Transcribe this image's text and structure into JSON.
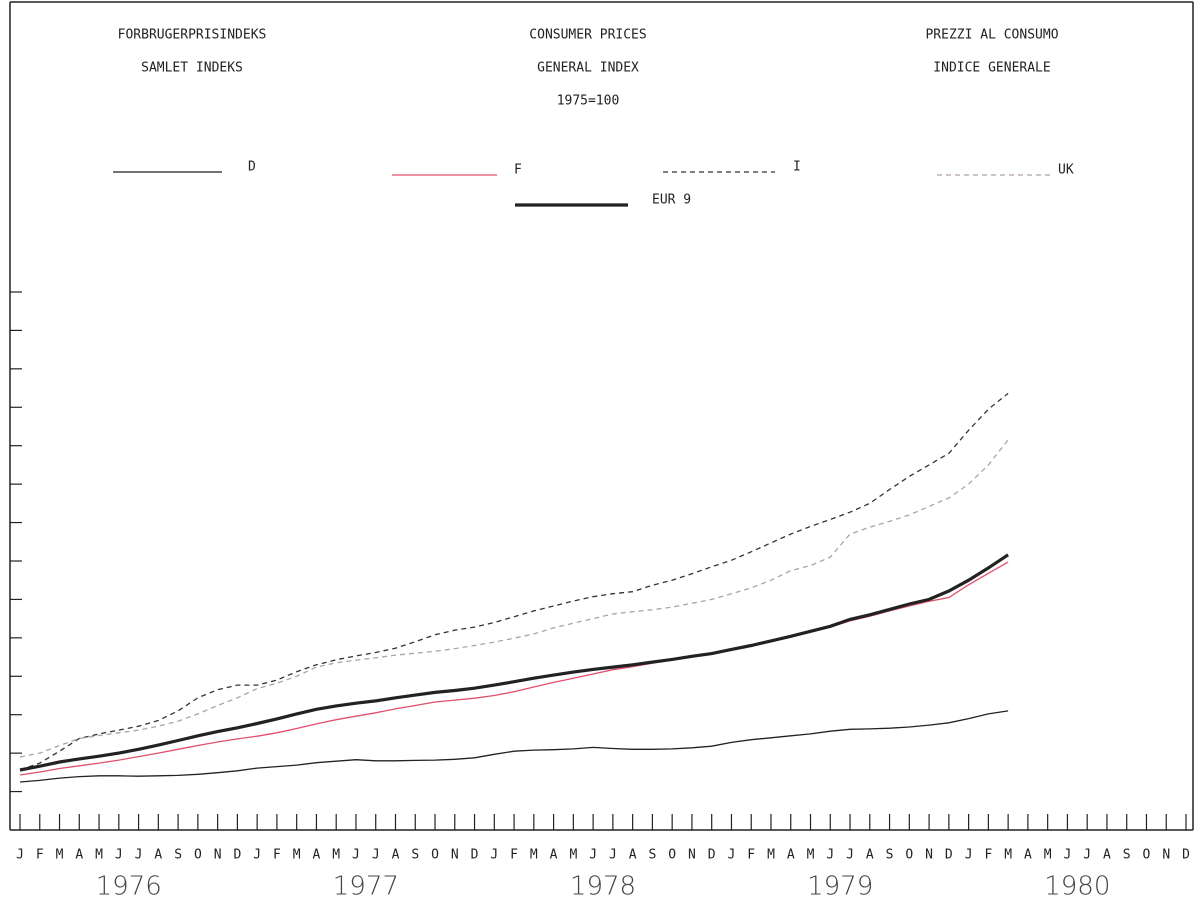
{
  "chart_data": {
    "type": "line",
    "titles": [
      [
        "FORBRUGERPRISINDEKS",
        "SAMLET INDEKS"
      ],
      [
        "CONSUMER PRICES",
        "GENERAL INDEX",
        "1975=100"
      ],
      [
        "PREZZI AL CONSUMO",
        "INDICE GENERALE"
      ]
    ],
    "categories": [
      "J",
      "F",
      "M",
      "A",
      "M",
      "J",
      "J",
      "A",
      "S",
      "O",
      "N",
      "D",
      "J",
      "F",
      "M",
      "A",
      "M",
      "J",
      "J",
      "A",
      "S",
      "O",
      "N",
      "D",
      "J",
      "F",
      "M",
      "A",
      "M",
      "J",
      "J",
      "A",
      "S",
      "O",
      "N",
      "D",
      "J",
      "F",
      "M",
      "A",
      "M",
      "J",
      "J",
      "A",
      "S",
      "O",
      "N",
      "D",
      "J",
      "F",
      "M",
      "A",
      "M",
      "J",
      "J",
      "A",
      "S",
      "O",
      "N",
      "D"
    ],
    "years": [
      "1976",
      "1977",
      "1978",
      "1979",
      "1980"
    ],
    "ylim": [
      90,
      240
    ],
    "yticks": [
      100,
      110,
      120,
      130,
      140,
      150,
      160,
      170,
      180,
      190,
      200,
      210,
      220,
      230
    ],
    "series": [
      {
        "name": "D",
        "color": "#222222",
        "dashed": false,
        "thick": false,
        "values": [
          102.5,
          102.9,
          103.5,
          103.9,
          104.1,
          104.1,
          104.0,
          104.1,
          104.2,
          104.5,
          104.9,
          105.4,
          106.1,
          106.5,
          106.9,
          107.5,
          107.9,
          108.3,
          108.0,
          108.0,
          108.1,
          108.2,
          108.4,
          108.8,
          109.7,
          110.5,
          110.8,
          110.9,
          111.1,
          111.5,
          111.2,
          111.0,
          111.0,
          111.1,
          111.4,
          111.8,
          112.8,
          113.5,
          114.0,
          114.5,
          115.0,
          115.7,
          116.2,
          116.3,
          116.5,
          116.8,
          117.3,
          117.9,
          119.0,
          120.2,
          121.0,
          null,
          null,
          null,
          null,
          null,
          null,
          null,
          null,
          null
        ]
      },
      {
        "name": "F",
        "color": "#e0506a",
        "dashed": false,
        "thick": false,
        "values": [
          104.3,
          105.1,
          106.0,
          106.7,
          107.4,
          108.2,
          109.1,
          110.0,
          111.0,
          112.0,
          112.9,
          113.7,
          114.4,
          115.3,
          116.4,
          117.6,
          118.7,
          119.6,
          120.5,
          121.5,
          122.4,
          123.3,
          123.8,
          124.3,
          125.0,
          126.0,
          127.2,
          128.4,
          129.5,
          130.6,
          131.7,
          132.5,
          133.4,
          134.2,
          135.0,
          135.8,
          136.8,
          137.8,
          139.0,
          140.2,
          141.5,
          142.8,
          144.4,
          145.6,
          147.0,
          148.3,
          149.5,
          150.5,
          153.8,
          156.8,
          159.7,
          null,
          null,
          null,
          null,
          null,
          null,
          null,
          null,
          null
        ]
      },
      {
        "name": "I",
        "color": "#333333",
        "dashed": true,
        "thick": false,
        "values": [
          105.6,
          107.4,
          110.5,
          113.8,
          115.0,
          116.0,
          117.0,
          118.5,
          121.0,
          124.4,
          126.5,
          127.7,
          127.7,
          129.0,
          131.2,
          133.0,
          134.3,
          135.3,
          136.2,
          137.3,
          139.0,
          140.8,
          142.0,
          142.8,
          144.0,
          145.5,
          147.0,
          148.3,
          149.6,
          150.7,
          151.5,
          152.0,
          153.7,
          155.0,
          156.7,
          158.5,
          160.2,
          162.4,
          164.7,
          167.0,
          169.0,
          170.8,
          172.7,
          175.0,
          178.6,
          182.0,
          185.0,
          188.0,
          194.0,
          199.5,
          203.6,
          null,
          null,
          null,
          null,
          null,
          null,
          null,
          null,
          null
        ]
      },
      {
        "name": "UK",
        "color": "#b0a0a8",
        "dashed": true,
        "thick": false,
        "values": [
          109.0,
          110.0,
          112.0,
          113.8,
          114.6,
          115.3,
          116.0,
          117.0,
          118.3,
          120.2,
          122.4,
          124.4,
          126.8,
          128.2,
          130.0,
          132.4,
          133.5,
          134.2,
          134.8,
          135.5,
          136.0,
          136.5,
          137.2,
          138.0,
          138.9,
          139.9,
          141.0,
          142.6,
          143.8,
          145.0,
          146.2,
          146.8,
          147.3,
          148.0,
          149.0,
          150.0,
          151.5,
          153.0,
          155.0,
          157.5,
          158.8,
          161.0,
          167.0,
          168.8,
          170.3,
          172.0,
          174.2,
          176.4,
          180.0,
          185.0,
          191.5,
          null,
          null,
          null,
          null,
          null,
          null,
          null,
          null,
          null
        ]
      },
      {
        "name": "EUR 9",
        "color": "#222222",
        "dashed": false,
        "thick": true,
        "values": [
          105.6,
          106.6,
          107.7,
          108.5,
          109.2,
          110.0,
          111.0,
          112.1,
          113.3,
          114.5,
          115.6,
          116.6,
          117.7,
          118.9,
          120.2,
          121.4,
          122.3,
          123.0,
          123.6,
          124.4,
          125.1,
          125.8,
          126.3,
          126.9,
          127.7,
          128.6,
          129.5,
          130.3,
          131.1,
          131.8,
          132.4,
          133.0,
          133.7,
          134.4,
          135.2,
          135.9,
          137.0,
          138.0,
          139.2,
          140.4,
          141.7,
          143.0,
          144.8,
          146.0,
          147.4,
          148.8,
          150.0,
          152.2,
          155.0,
          158.2,
          161.6,
          null,
          null,
          null,
          null,
          null,
          null,
          null,
          null,
          null
        ]
      }
    ]
  }
}
